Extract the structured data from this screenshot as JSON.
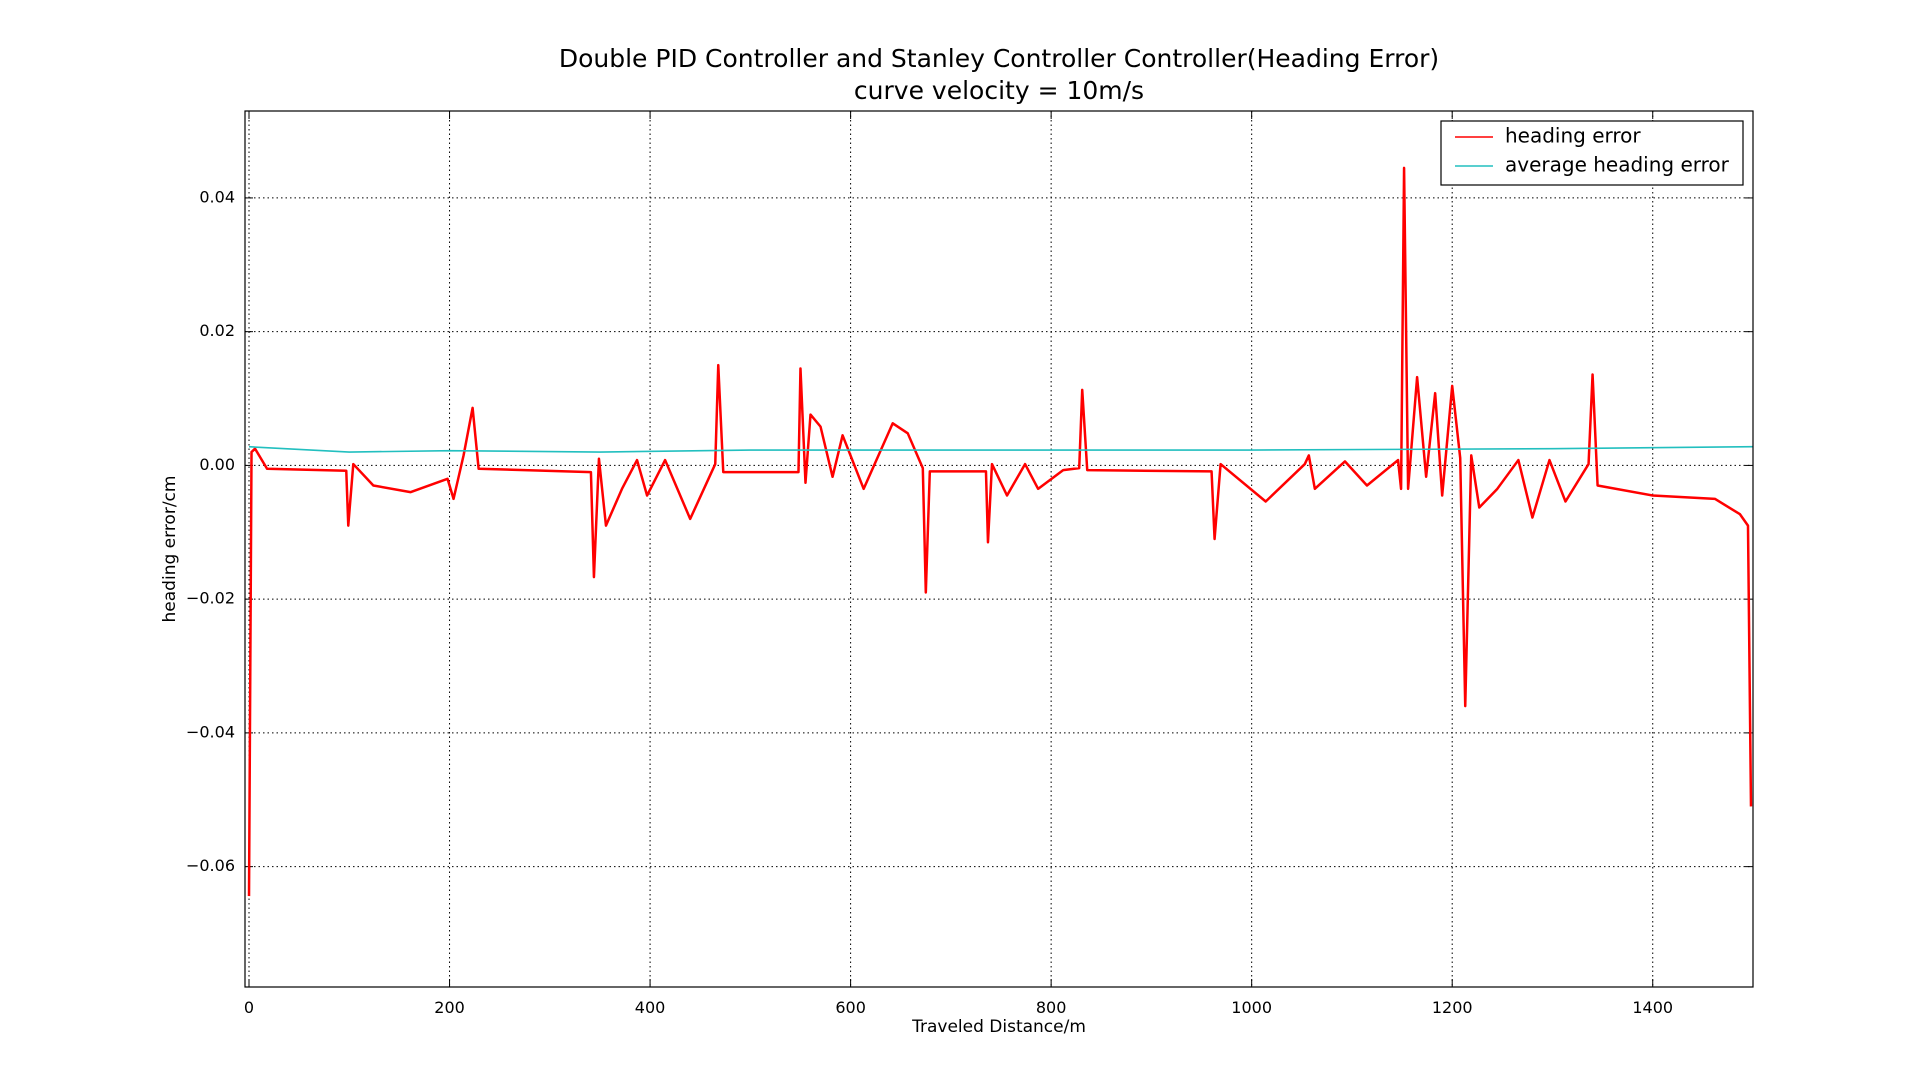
{
  "chart_data": {
    "type": "line",
    "title": "Double PID Controller and Stanley Controller Controller(Heading Error)",
    "subtitle": "curve velocity = 10m/s",
    "x_label": "Traveled Distance/m",
    "y_label": "heading error/cm",
    "xlim": [
      -4,
      1500
    ],
    "ylim": [
      -0.078,
      0.053
    ],
    "xticks": [
      0,
      200,
      400,
      600,
      800,
      1000,
      1200,
      1400
    ],
    "yticks": [
      {
        "value": -0.06,
        "label": "−0.06"
      },
      {
        "value": -0.04,
        "label": "−0.04"
      },
      {
        "value": -0.02,
        "label": "−0.02"
      },
      {
        "value": 0,
        "label": "0.00"
      },
      {
        "value": 0.02,
        "label": "0.02"
      },
      {
        "value": 0.04,
        "label": "0.04"
      }
    ],
    "grid": true,
    "legend": "upper right",
    "series": [
      {
        "name": "heading error",
        "color": "#ff0000",
        "x": [
          0,
          2.5,
          6,
          18,
          97,
          99,
          104,
          124,
          161,
          198,
          204,
          214,
          223,
          229,
          341,
          344,
          349,
          356,
          372,
          387,
          397,
          415,
          440,
          465,
          468,
          473,
          548,
          550,
          555,
          560,
          570,
          582,
          592,
          613,
          642,
          657,
          672,
          675,
          679,
          735,
          737,
          741,
          756,
          774,
          787,
          812,
          828,
          831,
          836,
          960,
          963,
          969,
          1014,
          1053,
          1057,
          1063,
          1093,
          1115,
          1146,
          1149,
          1152,
          1156,
          1165,
          1174,
          1183,
          1190,
          1200,
          1208,
          1213,
          1219,
          1227,
          1245,
          1266,
          1280,
          1297,
          1313,
          1336,
          1340,
          1345,
          1400,
          1462,
          1487,
          1495,
          1498
        ],
        "values": [
          -0.0644,
          0.002,
          0.0025,
          -0.0005,
          -0.0008,
          -0.009,
          0.0002,
          -0.003,
          -0.004,
          -0.002,
          -0.005,
          0.0015,
          0.0086,
          -0.0005,
          -0.001,
          -0.0167,
          0.001,
          -0.009,
          -0.0035,
          0.0008,
          -0.0045,
          0.0008,
          -0.008,
          0.0002,
          0.015,
          -0.001,
          -0.001,
          0.0145,
          -0.0026,
          0.0076,
          0.0058,
          -0.0017,
          0.0045,
          -0.0035,
          0.0063,
          0.0048,
          -0.0004,
          -0.019,
          -0.0009,
          -0.0009,
          -0.0115,
          0.0002,
          -0.0045,
          0.0002,
          -0.0035,
          -0.0007,
          -0.0004,
          0.0113,
          -0.0007,
          -0.0009,
          -0.011,
          0.0002,
          -0.0054,
          0.0002,
          0.0015,
          -0.0035,
          0.0006,
          -0.003,
          0.0008,
          -0.0035,
          0.0445,
          -0.0035,
          0.0132,
          -0.0017,
          0.0108,
          -0.0045,
          0.0119,
          0.0011,
          -0.036,
          0.0015,
          -0.0063,
          -0.0035,
          0.0008,
          -0.0078,
          0.0008,
          -0.0054,
          0.0002,
          0.0136,
          -0.003,
          -0.0045,
          -0.005,
          -0.0073,
          -0.009,
          -0.051
        ]
      },
      {
        "name": "average heading error",
        "color": "#22bfbf",
        "x": [
          0,
          10,
          100,
          200,
          350,
          500,
          700,
          1000,
          1300,
          1500
        ],
        "values": [
          0.0028,
          0.0027,
          0.002,
          0.0022,
          0.002,
          0.0023,
          0.0023,
          0.0023,
          0.0025,
          0.0028
        ]
      }
    ]
  }
}
